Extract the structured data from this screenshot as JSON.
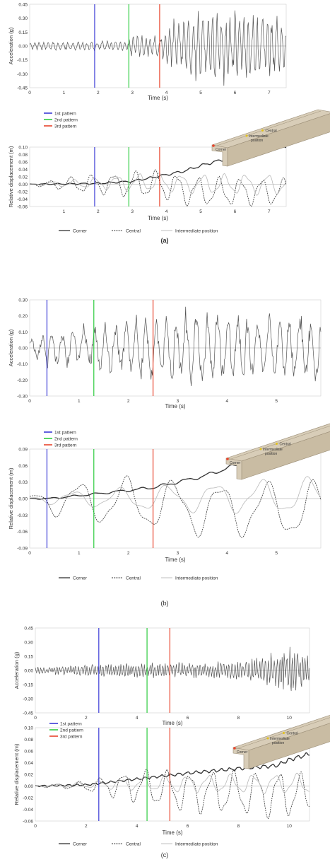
{
  "colors": {
    "pattern1": "#3b3bd6",
    "pattern2": "#2ecc40",
    "pattern3": "#e8442c",
    "corner": "#333333",
    "central": "#333333",
    "intermediate": "#b8b8b8",
    "beam": "#d8cdb8",
    "beam_dark": "#9c8f78"
  },
  "panels": [
    {
      "label": "(a)",
      "accel": {
        "ylabel": "Acceleration (g)",
        "xlabel": "Time (s)",
        "yticks": [
          "0.45",
          "0.30",
          "0.15",
          "0.00",
          "-0.15",
          "-0.30",
          "-0.45"
        ],
        "xticks": [
          "0",
          "1",
          "2",
          "3",
          "4",
          "5",
          "6",
          "7"
        ]
      },
      "disp": {
        "ylabel": "Relative displacement (m)",
        "xlabel": "Time (s)",
        "yticks": [
          "0.10",
          "0.08",
          "0.06",
          "0.04",
          "0.02",
          "0.00",
          "-0.02",
          "-0.04",
          "-0.06"
        ],
        "xticks": [
          "1",
          "2",
          "3",
          "4",
          "5",
          "6",
          "7"
        ]
      },
      "pattern_labels": [
        "1st pattern",
        "2nd pattern",
        "3rd pattern"
      ],
      "beam_labels": [
        "Central",
        "Intermediate",
        "position",
        "Corner"
      ],
      "legend": [
        "Corner",
        "Central",
        "Intermediate position"
      ]
    },
    {
      "label": "(b)",
      "accel": {
        "ylabel": "Acceleration (g)",
        "xlabel": "Time (s)",
        "yticks": [
          "0.30",
          "0.20",
          "0.10",
          "0.00",
          "-0.10",
          "-0.20",
          "-0.30"
        ],
        "xticks": [
          "0",
          "1",
          "2",
          "3",
          "4",
          "5"
        ]
      },
      "disp": {
        "ylabel": "Relative displacement (m)",
        "xlabel": "Time (s)",
        "yticks": [
          "0.09",
          "0.06",
          "0.03",
          "0.00",
          "-0.03",
          "-0.06",
          "-0.09"
        ],
        "xticks": [
          "0",
          "1",
          "2",
          "3",
          "4",
          "5"
        ]
      },
      "pattern_labels": [
        "1st pattern",
        "2nd pattern",
        "3rd pattern"
      ],
      "beam_labels": [
        "Central",
        "Intermediate",
        "position",
        "Corner"
      ],
      "legend": [
        "Corner",
        "Central",
        "Intermediate position"
      ]
    },
    {
      "label": "(c)",
      "accel": {
        "ylabel": "Acceleration (g)",
        "xlabel": "Time (s)",
        "yticks": [
          "0.45",
          "0.30",
          "0.15",
          "0.00",
          "-0.15",
          "-0.30",
          "-0.45"
        ],
        "xticks": [
          "0",
          "2",
          "4",
          "6",
          "8",
          "10"
        ]
      },
      "disp": {
        "ylabel": "Relative displacement (m)",
        "xlabel": "Time (s)",
        "yticks": [
          "0.10",
          "0.08",
          "0.06",
          "0.04",
          "0.02",
          "0.00",
          "-0.02",
          "-0.04",
          "-0.06"
        ],
        "xticks": [
          "0",
          "2",
          "4",
          "6",
          "8",
          "10"
        ]
      },
      "pattern_labels": [
        "1st pattern",
        "2nd pattern",
        "3rd pattern"
      ],
      "beam_labels": [
        "Central",
        "Intermediate",
        "position",
        "Corner"
      ],
      "legend": [
        "Corner",
        "Central",
        "Intermediate position"
      ]
    }
  ],
  "chart_data": [
    {
      "type": "line",
      "panel": "(a)",
      "title": "",
      "xlabel": "Time (s)",
      "ylabel": "Acceleration (g)",
      "xlim": [
        0,
        7.5
      ],
      "ylim": [
        -0.45,
        0.45
      ],
      "grid": false,
      "vertical_markers": [
        {
          "name": "1st pattern",
          "x": 1.9,
          "color": "#3b3bd6"
        },
        {
          "name": "2nd pattern",
          "x": 2.9,
          "color": "#2ecc40"
        },
        {
          "name": "3rd pattern",
          "x": 3.8,
          "color": "#e8442c"
        }
      ],
      "series": [
        {
          "style": "solid",
          "color": "#555555",
          "envelope": [
            [
              0,
              0.04
            ],
            [
              2.8,
              0.05
            ],
            [
              3.0,
              0.12
            ],
            [
              3.8,
              0.1
            ],
            [
              4.2,
              0.25
            ],
            [
              5.3,
              0.38
            ],
            [
              6.0,
              0.38
            ],
            [
              7.5,
              0.25
            ]
          ],
          "freq": 7.0,
          "seed": 11
        }
      ]
    },
    {
      "type": "line",
      "panel": "(a)",
      "title": "",
      "xlabel": "Time (s)",
      "ylabel": "Relative displacement (m)",
      "xlim": [
        0,
        7.5
      ],
      "ylim": [
        -0.06,
        0.1
      ],
      "grid": false,
      "legend": "bottom",
      "vertical_markers": [
        {
          "name": "1st pattern",
          "x": 1.9,
          "color": "#3b3bd6"
        },
        {
          "name": "2nd pattern",
          "x": 2.9,
          "color": "#2ecc40"
        },
        {
          "name": "3rd pattern",
          "x": 3.8,
          "color": "#e8442c"
        }
      ],
      "series": [
        {
          "name": "Corner",
          "style": "solid",
          "color": "#333333",
          "trend": [
            [
              0,
              0
            ],
            [
              2.0,
              0.002
            ],
            [
              3.0,
              0.008
            ],
            [
              3.8,
              0.022
            ],
            [
              4.5,
              0.035
            ],
            [
              5.0,
              0.05
            ],
            [
              6.0,
              0.075
            ],
            [
              6.6,
              0.088
            ],
            [
              7.0,
              0.095
            ],
            [
              7.5,
              0.1
            ]
          ],
          "amp": [
            [
              0,
              0.001
            ],
            [
              7.5,
              0.004
            ]
          ],
          "freq": 2.6,
          "seed": 3
        },
        {
          "name": "Central",
          "style": "dashed",
          "color": "#333333",
          "trend": [
            [
              0,
              0
            ],
            [
              3.8,
              0.0
            ],
            [
              4.8,
              -0.02
            ],
            [
              7.5,
              -0.02
            ]
          ],
          "amp": [
            [
              0,
              0.002
            ],
            [
              1.5,
              0.02
            ],
            [
              3.0,
              0.03
            ],
            [
              4.5,
              0.035
            ],
            [
              7.5,
              0.03
            ]
          ],
          "freq": 1.6,
          "seed": 5
        },
        {
          "name": "Intermediate position",
          "style": "solid",
          "color": "#b8b8b8",
          "trend": [
            [
              0,
              0
            ],
            [
              3.8,
              0.005
            ],
            [
              5.0,
              0.0
            ],
            [
              7.5,
              0.0
            ]
          ],
          "amp": [
            [
              0,
              0.002
            ],
            [
              1.5,
              0.01
            ],
            [
              3.0,
              0.02
            ],
            [
              7.5,
              0.025
            ]
          ],
          "freq": 1.6,
          "seed": 7
        }
      ]
    },
    {
      "type": "line",
      "panel": "(b)",
      "title": "",
      "xlabel": "Time (s)",
      "ylabel": "Acceleration (g)",
      "xlim": [
        0,
        5.9
      ],
      "ylim": [
        -0.3,
        0.3
      ],
      "grid": false,
      "vertical_markers": [
        {
          "name": "1st pattern",
          "x": 0.35,
          "color": "#3b3bd6"
        },
        {
          "name": "2nd pattern",
          "x": 1.3,
          "color": "#2ecc40"
        },
        {
          "name": "3rd pattern",
          "x": 2.5,
          "color": "#e8442c"
        }
      ],
      "series": [
        {
          "style": "solid",
          "color": "#555555",
          "envelope": [
            [
              0,
              0.07
            ],
            [
              0.4,
              0.12
            ],
            [
              1.0,
              0.12
            ],
            [
              2.2,
              0.18
            ],
            [
              2.5,
              0.2
            ],
            [
              3.5,
              0.22
            ],
            [
              5.9,
              0.18
            ]
          ],
          "freq": 4.5,
          "seed": 13
        }
      ]
    },
    {
      "type": "line",
      "panel": "(b)",
      "title": "",
      "xlabel": "Time (s)",
      "ylabel": "Relative displacement (m)",
      "xlim": [
        0,
        5.9
      ],
      "ylim": [
        -0.09,
        0.09
      ],
      "grid": false,
      "legend": "bottom",
      "vertical_markers": [
        {
          "name": "1st pattern",
          "x": 0.35,
          "color": "#3b3bd6"
        },
        {
          "name": "2nd pattern",
          "x": 1.3,
          "color": "#2ecc40"
        },
        {
          "name": "3rd pattern",
          "x": 2.5,
          "color": "#e8442c"
        }
      ],
      "series": [
        {
          "name": "Corner",
          "style": "solid",
          "color": "#333333",
          "trend": [
            [
              0,
              0
            ],
            [
              0.4,
              0.0
            ],
            [
              1.5,
              0.01
            ],
            [
              2.5,
              0.02
            ],
            [
              3.5,
              0.04
            ],
            [
              4.5,
              0.07
            ],
            [
              5.2,
              0.085
            ],
            [
              5.6,
              0.095
            ],
            [
              5.9,
              0.09
            ]
          ],
          "amp": [
            [
              0,
              0.001
            ],
            [
              5.9,
              0.004
            ]
          ],
          "freq": 2.2,
          "seed": 17
        },
        {
          "name": "Central",
          "style": "dashed",
          "color": "#333333",
          "trend": [
            [
              0,
              0
            ],
            [
              2.5,
              -0.01
            ],
            [
              3.5,
              -0.02
            ],
            [
              5.9,
              -0.02
            ]
          ],
          "amp": [
            [
              0,
              0.004
            ],
            [
              0.5,
              0.025
            ],
            [
              2.0,
              0.04
            ],
            [
              5.9,
              0.045
            ]
          ],
          "freq": 1.05,
          "seed": 19
        },
        {
          "name": "Intermediate position",
          "style": "solid",
          "color": "#b8b8b8",
          "trend": [
            [
              0,
              0
            ],
            [
              2.5,
              0.0
            ],
            [
              5.9,
              0.005
            ]
          ],
          "amp": [
            [
              0,
              0.002
            ],
            [
              0.5,
              0.01
            ],
            [
              2.5,
              0.02
            ],
            [
              5.9,
              0.03
            ]
          ],
          "freq": 1.05,
          "seed": 23
        }
      ]
    },
    {
      "type": "line",
      "panel": "(c)",
      "title": "",
      "xlabel": "Time (s)",
      "ylabel": "Acceleration (g)",
      "xlim": [
        0,
        10.8
      ],
      "ylim": [
        -0.45,
        0.45
      ],
      "grid": false,
      "vertical_markers": [
        {
          "name": "1st pattern",
          "x": 2.5,
          "color": "#3b3bd6"
        },
        {
          "name": "2nd pattern",
          "x": 4.4,
          "color": "#2ecc40"
        },
        {
          "name": "3rd pattern",
          "x": 5.3,
          "color": "#e8442c"
        }
      ],
      "series": [
        {
          "style": "solid",
          "color": "#555555",
          "envelope": [
            [
              0,
              0.03
            ],
            [
              2.0,
              0.06
            ],
            [
              4.0,
              0.08
            ],
            [
              6.0,
              0.08
            ],
            [
              8.0,
              0.09
            ],
            [
              9.5,
              0.18
            ],
            [
              10.0,
              0.28
            ],
            [
              10.8,
              0.15
            ]
          ],
          "freq": 9.0,
          "seed": 29
        }
      ]
    },
    {
      "type": "line",
      "panel": "(c)",
      "title": "",
      "xlabel": "Time (s)",
      "ylabel": "Relative displacement (m)",
      "xlim": [
        0,
        10.8
      ],
      "ylim": [
        -0.06,
        0.1
      ],
      "grid": false,
      "legend": "bottom",
      "vertical_markers": [
        {
          "name": "1st pattern",
          "x": 2.5,
          "color": "#3b3bd6"
        },
        {
          "name": "2nd pattern",
          "x": 4.4,
          "color": "#2ecc40"
        },
        {
          "name": "3rd pattern",
          "x": 5.3,
          "color": "#e8442c"
        }
      ],
      "series": [
        {
          "name": "Corner",
          "style": "solid",
          "color": "#333333",
          "trend": [
            [
              0,
              0
            ],
            [
              2.0,
              0.002
            ],
            [
              4.0,
              0.012
            ],
            [
              6.0,
              0.022
            ],
            [
              8.0,
              0.03
            ],
            [
              9.5,
              0.035
            ],
            [
              10.0,
              0.045
            ],
            [
              10.8,
              0.055
            ]
          ],
          "amp": [
            [
              0,
              0.001
            ],
            [
              10.8,
              0.003
            ]
          ],
          "freq": 3.0,
          "seed": 31
        },
        {
          "name": "Central",
          "style": "dashed",
          "color": "#333333",
          "trend": [
            [
              0,
              0
            ],
            [
              4.0,
              0.0
            ],
            [
              6.0,
              -0.01
            ],
            [
              10.8,
              -0.015
            ]
          ],
          "amp": [
            [
              0,
              0.001
            ],
            [
              1.5,
              0.005
            ],
            [
              2.5,
              0.012
            ],
            [
              4.0,
              0.025
            ],
            [
              6.0,
              0.03
            ],
            [
              9.8,
              0.035
            ],
            [
              10.8,
              0.03
            ]
          ],
          "freq": 1.15,
          "seed": 37
        },
        {
          "name": "Intermediate position",
          "style": "solid",
          "color": "#b8b8b8",
          "trend": [
            [
              0,
              0
            ],
            [
              4.0,
              0.004
            ],
            [
              10.8,
              0.004
            ]
          ],
          "amp": [
            [
              0,
              0.001
            ],
            [
              2.5,
              0.006
            ],
            [
              5.0,
              0.012
            ],
            [
              10.8,
              0.015
            ]
          ],
          "freq": 1.15,
          "seed": 41
        }
      ]
    }
  ]
}
